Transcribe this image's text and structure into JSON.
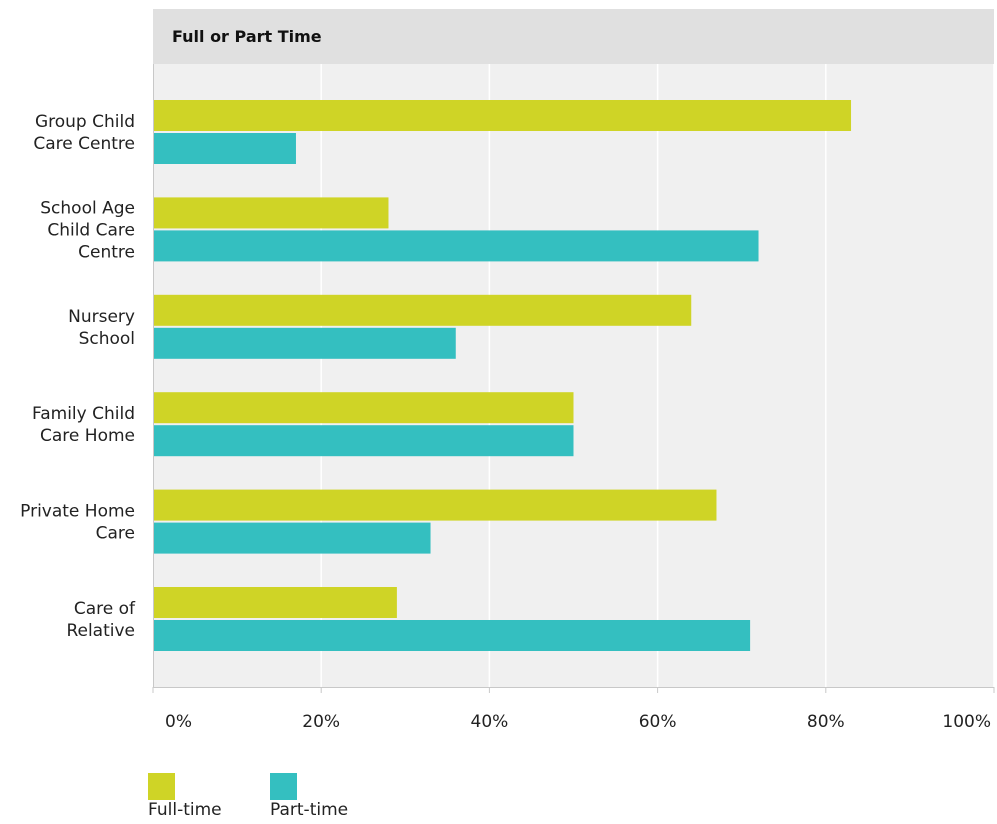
{
  "header": {
    "title": "Full or Part Time"
  },
  "chart_data": {
    "type": "bar",
    "orientation": "horizontal",
    "title": "Full or Part Time",
    "xlabel": "",
    "ylabel": "",
    "xlim": [
      0,
      100
    ],
    "x_ticks": [
      "0%",
      "20%",
      "40%",
      "60%",
      "80%",
      "100%"
    ],
    "x_tick_values": [
      0,
      20,
      40,
      60,
      80,
      100
    ],
    "categories": [
      [
        "Group Child",
        "Care Centre"
      ],
      [
        "School Age",
        "Child Care",
        "Centre"
      ],
      [
        "Nursery",
        "School"
      ],
      [
        "Family Child",
        "Care Home"
      ],
      [
        "Private Home",
        "Care"
      ],
      [
        "Care of",
        "Relative"
      ]
    ],
    "series": [
      {
        "name": "Full-time",
        "color": "#cfd426",
        "values": [
          83,
          28,
          64,
          50,
          67,
          29
        ]
      },
      {
        "name": "Part-time",
        "color": "#34bfc0",
        "values": [
          17,
          72,
          36,
          50,
          33,
          71
        ]
      }
    ],
    "grid": true,
    "legend_position": "bottom-left",
    "plot_background": "#f0f0f0"
  }
}
